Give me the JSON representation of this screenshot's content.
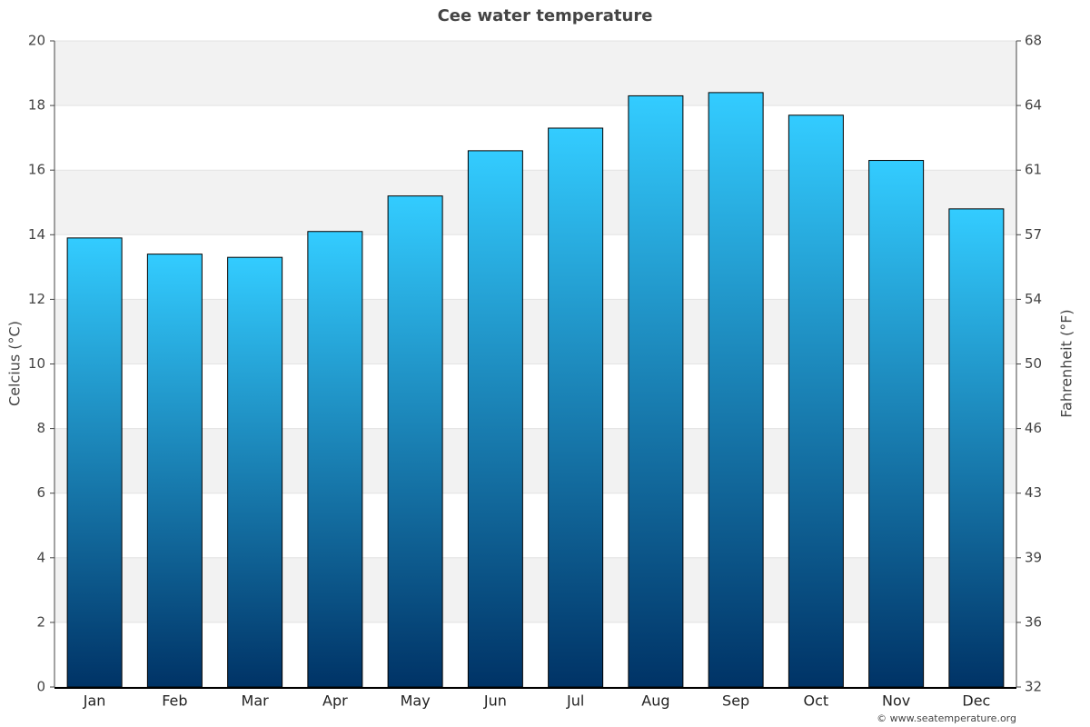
{
  "chart_data": {
    "type": "bar",
    "title": "Cee water temperature",
    "y_label": "Celcius (°C)",
    "y2_label": "Fahrenheit (°F)",
    "credit": "© www.seatemperature.org",
    "categories": [
      "Jan",
      "Feb",
      "Mar",
      "Apr",
      "May",
      "Jun",
      "Jul",
      "Aug",
      "Sep",
      "Oct",
      "Nov",
      "Dec"
    ],
    "values": [
      13.9,
      13.4,
      13.3,
      14.1,
      15.2,
      16.6,
      17.3,
      18.3,
      18.4,
      17.7,
      16.3,
      14.8
    ],
    "color_top": "#33ccff",
    "color_bottom": "#003366",
    "ylim": [
      0,
      20
    ],
    "yticks": [
      0,
      2,
      4,
      6,
      8,
      10,
      12,
      14,
      16,
      18,
      20
    ],
    "y2lim": [
      32,
      68
    ],
    "y2ticks": [
      32,
      {
        "value": 35.6,
        "label": "36"
      },
      {
        "value": 39.2,
        "label": "39"
      },
      {
        "value": 42.8,
        "label": "43"
      },
      {
        "value": 46.4,
        "label": "46"
      },
      50,
      {
        "value": 53.6,
        "label": "54"
      },
      {
        "value": 57.2,
        "label": "57"
      },
      {
        "value": 60.8,
        "label": "61"
      },
      {
        "value": 64.4,
        "label": "64"
      },
      68
    ],
    "grid": true
  }
}
